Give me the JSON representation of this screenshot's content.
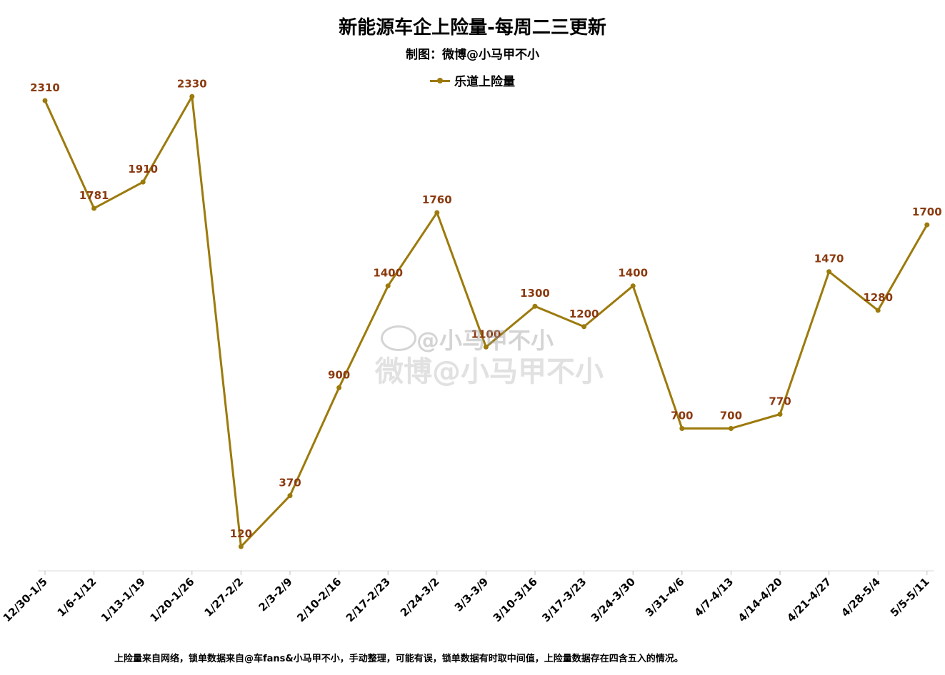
{
  "chart_data": {
    "type": "line",
    "title": "新能源车企上险量-每周二三更新",
    "subtitle": "制图：微博@小马甲不小",
    "categories": [
      "12/30-1/5",
      "1/6-1/12",
      "1/13-1/19",
      "1/20-1/26",
      "1/27-2/2",
      "2/3-2/9",
      "2/10-2/16",
      "2/17-2/23",
      "2/24-3/2",
      "3/3-3/9",
      "3/10-3/16",
      "3/17-3/23",
      "3/24-3/30",
      "3/31-4/6",
      "4/7-4/13",
      "4/14-4/20",
      "4/21-4/27",
      "4/28-5/4",
      "5/5-5/11"
    ],
    "series": [
      {
        "name": "乐道上险量",
        "values": [
          2310,
          1781,
          1910,
          2330,
          120,
          370,
          900,
          1400,
          1760,
          1100,
          1300,
          1200,
          1400,
          700,
          700,
          770,
          1470,
          1280,
          1700
        ]
      }
    ],
    "data_labels": [
      "2310",
      "1781",
      "1910",
      "2330",
      "120",
      "370",
      "900",
      "1400",
      "1760",
      "1100",
      "1300",
      "1200",
      "1400",
      "700",
      "700",
      "770",
      "1470",
      "1280",
      "1700"
    ],
    "ylim": [
      -100,
      2500
    ],
    "grid": false,
    "legend_position": "top-center",
    "line_color": "#9c7a0c",
    "label_color": "#8b3a0f",
    "footnote": "上险量来自网络，锁单数据来自@车fans&小马甲不小，手动整理，可能有误，锁单数据有时取中间值，上险量数据存在四含五入的情况。"
  },
  "watermark": {
    "line1": "@小马甲不小",
    "line2": "微博@小马甲不小"
  }
}
